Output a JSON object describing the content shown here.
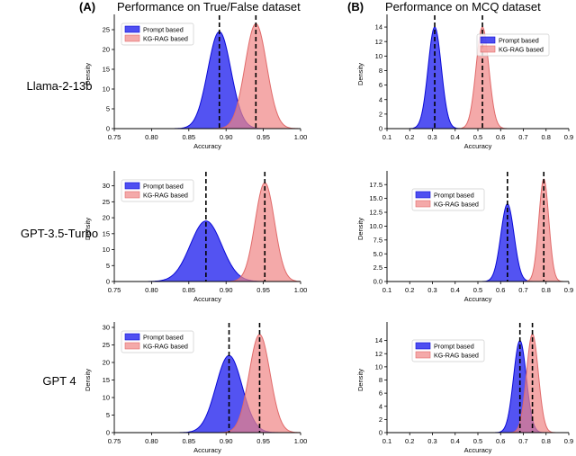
{
  "header": {
    "panel_a_letter": "(A)",
    "panel_a_title": "Performance on True/False dataset",
    "panel_b_letter": "(B)",
    "panel_b_title": "Performance on MCQ dataset"
  },
  "row_labels": [
    "Llama-2-13b",
    "GPT-3.5-Turbo",
    "GPT 4"
  ],
  "colors": {
    "prompt_fill": "#2222ee",
    "prompt_line": "#0a0ad6",
    "kg_fill": "#ef8585",
    "kg_line": "#e06a6a",
    "mean_line": "#000000"
  },
  "chart_data": [
    {
      "id": "tf-llama",
      "type": "area",
      "title": "",
      "xlabel": "Accuracy",
      "ylabel": "Density",
      "xlim": [
        0.75,
        1.0
      ],
      "xticks": [
        0.75,
        0.8,
        0.85,
        0.9,
        0.95,
        1.0
      ],
      "xtick_labels": [
        "0.75",
        "0.80",
        "0.85",
        "0.90",
        "0.95",
        "1.00"
      ],
      "ylim": [
        0,
        27.5
      ],
      "yticks": [
        0,
        5,
        10,
        15,
        20,
        25
      ],
      "ytick_labels": [
        "0",
        "5",
        "10",
        "15",
        "20",
        "25"
      ],
      "legend_position": "upper-left",
      "series": [
        {
          "name": "Prompt based",
          "mean": 0.891,
          "sd": 0.0155,
          "peak": 24.5
        },
        {
          "name": "KG-RAG based",
          "mean": 0.94,
          "sd": 0.0145,
          "peak": 26.5
        }
      ]
    },
    {
      "id": "mcq-llama",
      "type": "area",
      "title": "",
      "xlabel": "Accuracy",
      "ylabel": "Density",
      "xlim": [
        0.1,
        0.9
      ],
      "xticks": [
        0.1,
        0.2,
        0.3,
        0.4,
        0.5,
        0.6,
        0.7,
        0.8,
        0.9
      ],
      "xtick_labels": [
        "0.1",
        "0.2",
        "0.3",
        "0.4",
        "0.5",
        "0.6",
        "0.7",
        "0.8",
        "0.9"
      ],
      "ylim": [
        0,
        15
      ],
      "yticks": [
        0,
        2,
        4,
        6,
        8,
        10,
        12,
        14
      ],
      "ytick_labels": [
        "0",
        "2",
        "4",
        "6",
        "8",
        "10",
        "12",
        "14"
      ],
      "legend_position": "top-right",
      "series": [
        {
          "name": "Prompt based",
          "mean": 0.31,
          "sd": 0.029,
          "peak": 14.0
        },
        {
          "name": "KG-RAG based",
          "mean": 0.52,
          "sd": 0.028,
          "peak": 14.0
        }
      ]
    },
    {
      "id": "tf-gpt35",
      "type": "area",
      "title": "",
      "xlabel": "Accuracy",
      "ylabel": "Density",
      "xlim": [
        0.75,
        1.0
      ],
      "xticks": [
        0.75,
        0.8,
        0.85,
        0.9,
        0.95,
        1.0
      ],
      "xtick_labels": [
        "0.75",
        "0.80",
        "0.85",
        "0.90",
        "0.95",
        "1.00"
      ],
      "ylim": [
        0,
        33
      ],
      "yticks": [
        0,
        5,
        10,
        15,
        20,
        25,
        30
      ],
      "ytick_labels": [
        "0",
        "5",
        "10",
        "15",
        "20",
        "25",
        "30"
      ],
      "legend_position": "upper-left",
      "series": [
        {
          "name": "Prompt based",
          "mean": 0.873,
          "sd": 0.021,
          "peak": 19.0
        },
        {
          "name": "KG-RAG based",
          "mean": 0.952,
          "sd": 0.013,
          "peak": 31.0
        }
      ]
    },
    {
      "id": "mcq-gpt35",
      "type": "area",
      "title": "",
      "xlabel": "Accuracy",
      "ylabel": "Density",
      "xlim": [
        0.1,
        0.9
      ],
      "xticks": [
        0.1,
        0.2,
        0.3,
        0.4,
        0.5,
        0.6,
        0.7,
        0.8,
        0.9
      ],
      "xtick_labels": [
        "0.1",
        "0.2",
        "0.3",
        "0.4",
        "0.5",
        "0.6",
        "0.7",
        "0.8",
        "0.9"
      ],
      "ylim": [
        0,
        19
      ],
      "yticks": [
        0,
        2.5,
        5.0,
        7.5,
        10.0,
        12.5,
        15.0,
        17.5
      ],
      "ytick_labels": [
        "0.0",
        "2.5",
        "5.0",
        "7.5",
        "10.0",
        "12.5",
        "15.0",
        "17.5"
      ],
      "legend_position": "upper-center",
      "series": [
        {
          "name": "Prompt based",
          "mean": 0.63,
          "sd": 0.029,
          "peak": 14.0
        },
        {
          "name": "KG-RAG based",
          "mean": 0.79,
          "sd": 0.022,
          "peak": 18.5
        }
      ]
    },
    {
      "id": "tf-gpt4",
      "type": "area",
      "title": "",
      "xlabel": "Accuracy",
      "ylabel": "Density",
      "xlim": [
        0.75,
        1.0
      ],
      "xticks": [
        0.75,
        0.8,
        0.85,
        0.9,
        0.95,
        1.0
      ],
      "xtick_labels": [
        "0.75",
        "0.80",
        "0.85",
        "0.90",
        "0.95",
        "1.00"
      ],
      "ylim": [
        0,
        30
      ],
      "yticks": [
        0,
        5,
        10,
        15,
        20,
        25,
        30
      ],
      "ytick_labels": [
        "0",
        "5",
        "10",
        "15",
        "20",
        "25",
        "30"
      ],
      "legend_position": "upper-left",
      "series": [
        {
          "name": "Prompt based",
          "mean": 0.904,
          "sd": 0.0175,
          "peak": 22.0
        },
        {
          "name": "KG-RAG based",
          "mean": 0.945,
          "sd": 0.014,
          "peak": 28.0
        }
      ]
    },
    {
      "id": "mcq-gpt4",
      "type": "area",
      "title": "",
      "xlabel": "Accuracy",
      "ylabel": "Density",
      "xlim": [
        0.1,
        0.9
      ],
      "xticks": [
        0.1,
        0.2,
        0.3,
        0.4,
        0.5,
        0.6,
        0.7,
        0.8,
        0.9
      ],
      "xtick_labels": [
        "0.1",
        "0.2",
        "0.3",
        "0.4",
        "0.5",
        "0.6",
        "0.7",
        "0.8",
        "0.9"
      ],
      "ylim": [
        0,
        16
      ],
      "yticks": [
        0,
        2,
        4,
        6,
        8,
        10,
        12,
        14
      ],
      "ytick_labels": [
        "0",
        "2",
        "4",
        "6",
        "8",
        "10",
        "12",
        "14"
      ],
      "legend_position": "upper-center",
      "series": [
        {
          "name": "Prompt based",
          "mean": 0.685,
          "sd": 0.028,
          "peak": 14.0
        },
        {
          "name": "KG-RAG based",
          "mean": 0.74,
          "sd": 0.026,
          "peak": 15.0
        }
      ]
    }
  ]
}
